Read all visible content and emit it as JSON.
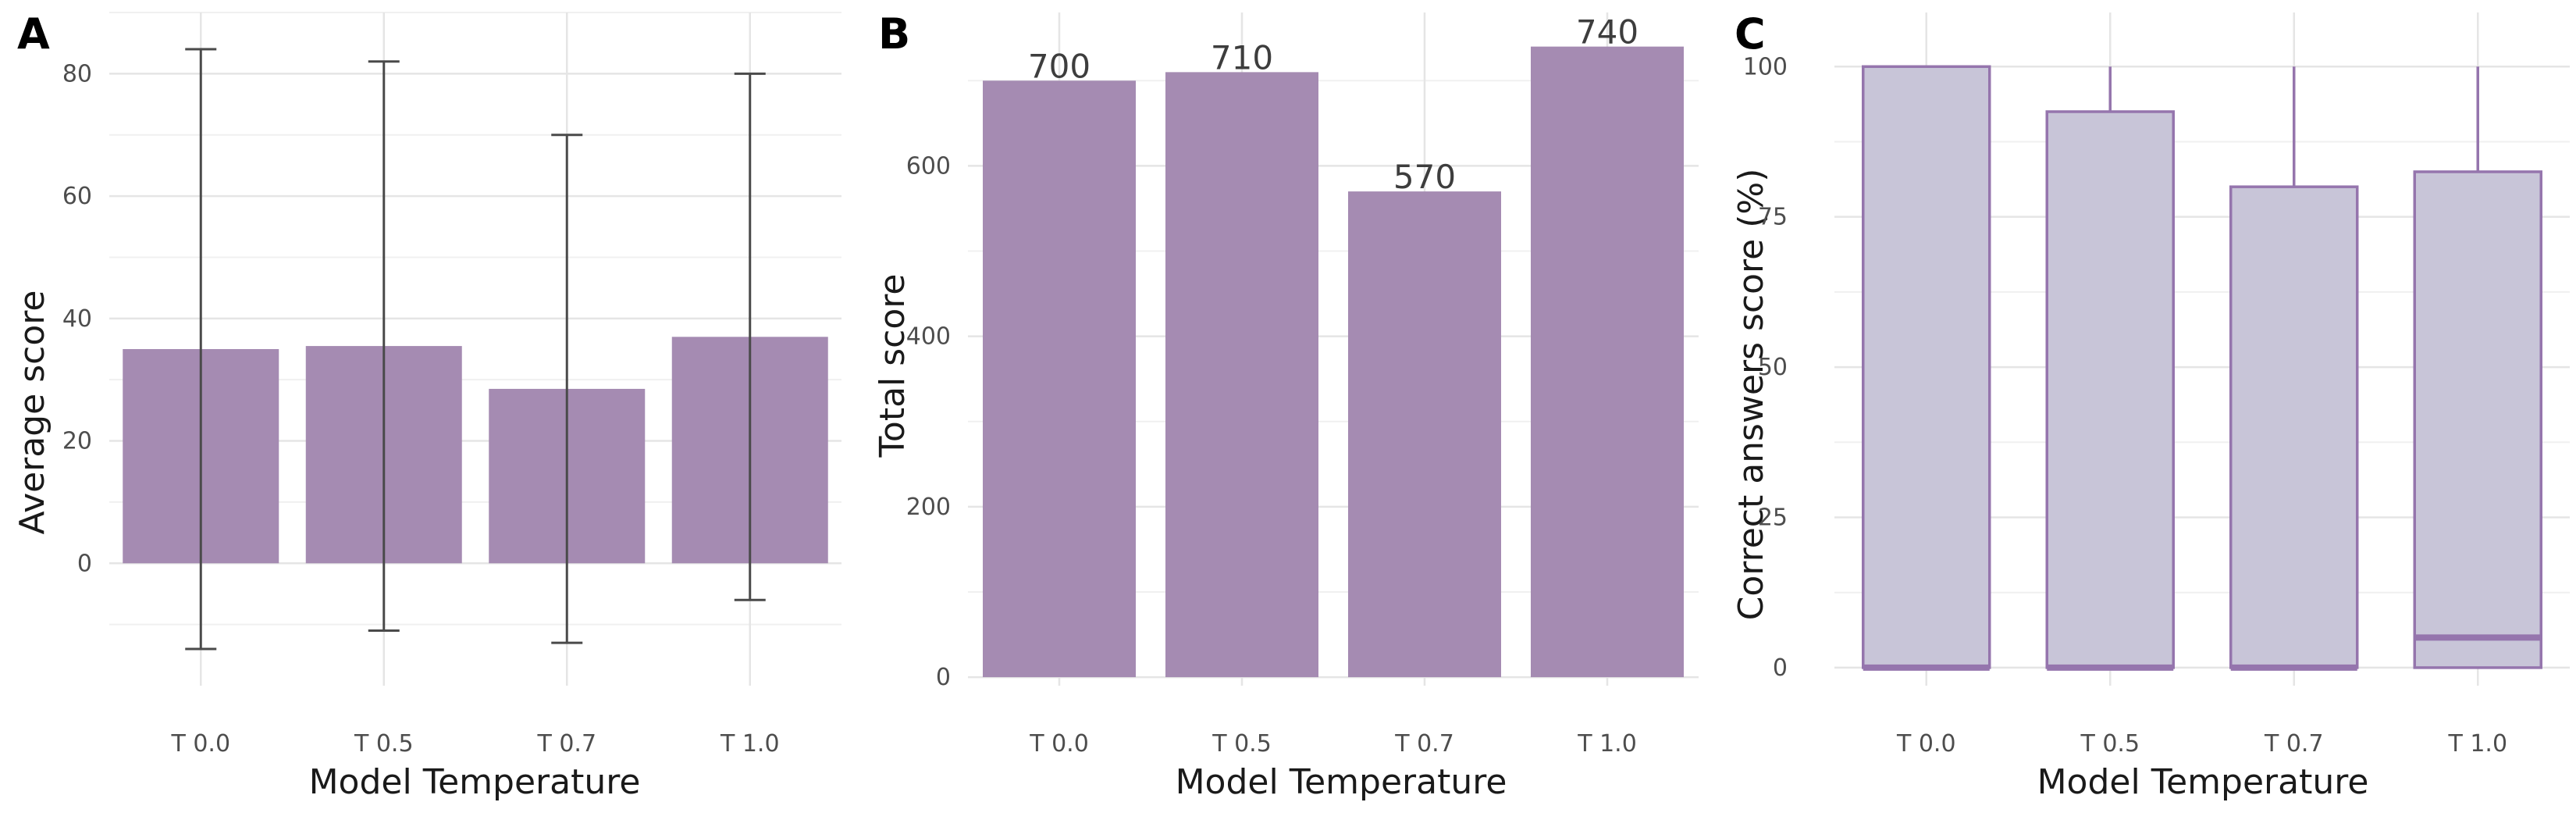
{
  "colors": {
    "bar_fill": "#a58bb2",
    "box_fill": "#c8c5d8",
    "box_stroke": "#9575ad",
    "error_bar": "#4a4a4a",
    "grid": "#e5e5e5"
  },
  "chart_data": [
    {
      "panel": "A",
      "type": "bar",
      "categories": [
        "T 0.0",
        "T 0.5",
        "T 0.7",
        "T 1.0"
      ],
      "values": [
        35,
        35.5,
        28.5,
        37
      ],
      "error_bars": [
        {
          "low": -14,
          "high": 84
        },
        {
          "low": -11,
          "high": 82
        },
        {
          "low": -13,
          "high": 70
        },
        {
          "low": -6,
          "high": 80
        }
      ],
      "xlabel": "Model Temperature",
      "ylabel": "Average score",
      "ylim": [
        -20,
        90
      ],
      "yticks": [
        0,
        20,
        40,
        60,
        80
      ],
      "grid": true
    },
    {
      "panel": "B",
      "type": "bar",
      "categories": [
        "T 0.0",
        "T 0.5",
        "T 0.7",
        "T 1.0"
      ],
      "values": [
        700,
        710,
        570,
        740
      ],
      "data_labels": [
        "700",
        "710",
        "570",
        "740"
      ],
      "xlabel": "Model Temperature",
      "ylabel": "Total score",
      "ylim": [
        -10,
        780
      ],
      "yticks": [
        0,
        200,
        400,
        600
      ],
      "grid": true
    },
    {
      "panel": "C",
      "type": "box",
      "categories": [
        "T 0.0",
        "T 0.5",
        "T 0.7",
        "T 1.0"
      ],
      "boxes": [
        {
          "min": 0,
          "q1": 0,
          "median": 0,
          "q3": 100,
          "max": 100
        },
        {
          "min": 0,
          "q1": 0,
          "median": 0,
          "q3": 92.5,
          "max": 100
        },
        {
          "min": 0,
          "q1": 0,
          "median": 0,
          "q3": 80,
          "max": 100
        },
        {
          "min": 0,
          "q1": 0,
          "median": 5,
          "q3": 82.5,
          "max": 100
        }
      ],
      "xlabel": "Model Temperature",
      "ylabel": "Correct answers score (%)",
      "ylim": [
        -3,
        109
      ],
      "yticks": [
        0,
        25,
        50,
        75,
        100
      ],
      "grid": true
    }
  ]
}
